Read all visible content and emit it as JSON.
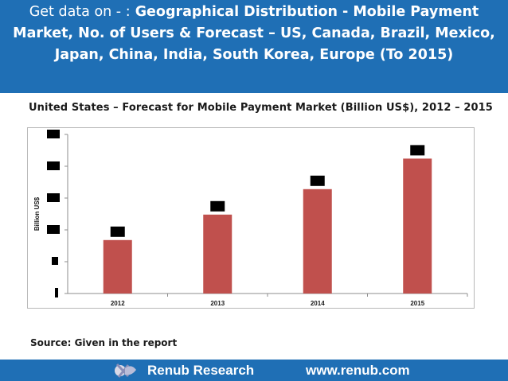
{
  "header": {
    "lead": "Get data on - :",
    "title": "Geographical Distribution - Mobile Payment Market, No. of Users & Forecast – US, Canada, Brazil, Mexico, Japan, China, India, South Korea, Europe (To 2015)"
  },
  "chart_data": {
    "type": "bar",
    "title": "United States – Forecast for Mobile Payment Market (Billion US$), 2012 – 2015",
    "categories": [
      "2012",
      "2013",
      "2014",
      "2015"
    ],
    "values": [
      42,
      62,
      82,
      106
    ],
    "ylim": [
      0,
      125
    ],
    "ytick_count": 6,
    "xlabel": "",
    "ylabel": "Billion US$",
    "grid": false,
    "bar_color": "#c0504d",
    "labels_redacted": true
  },
  "source": "Source: Given in the report",
  "footer": {
    "company": "Renub Research",
    "url": "www.renub.com",
    "logo_icon": "renub-logo-icon"
  },
  "colors": {
    "brand_blue": "#1f6fb5",
    "bar": "#c0504d"
  }
}
